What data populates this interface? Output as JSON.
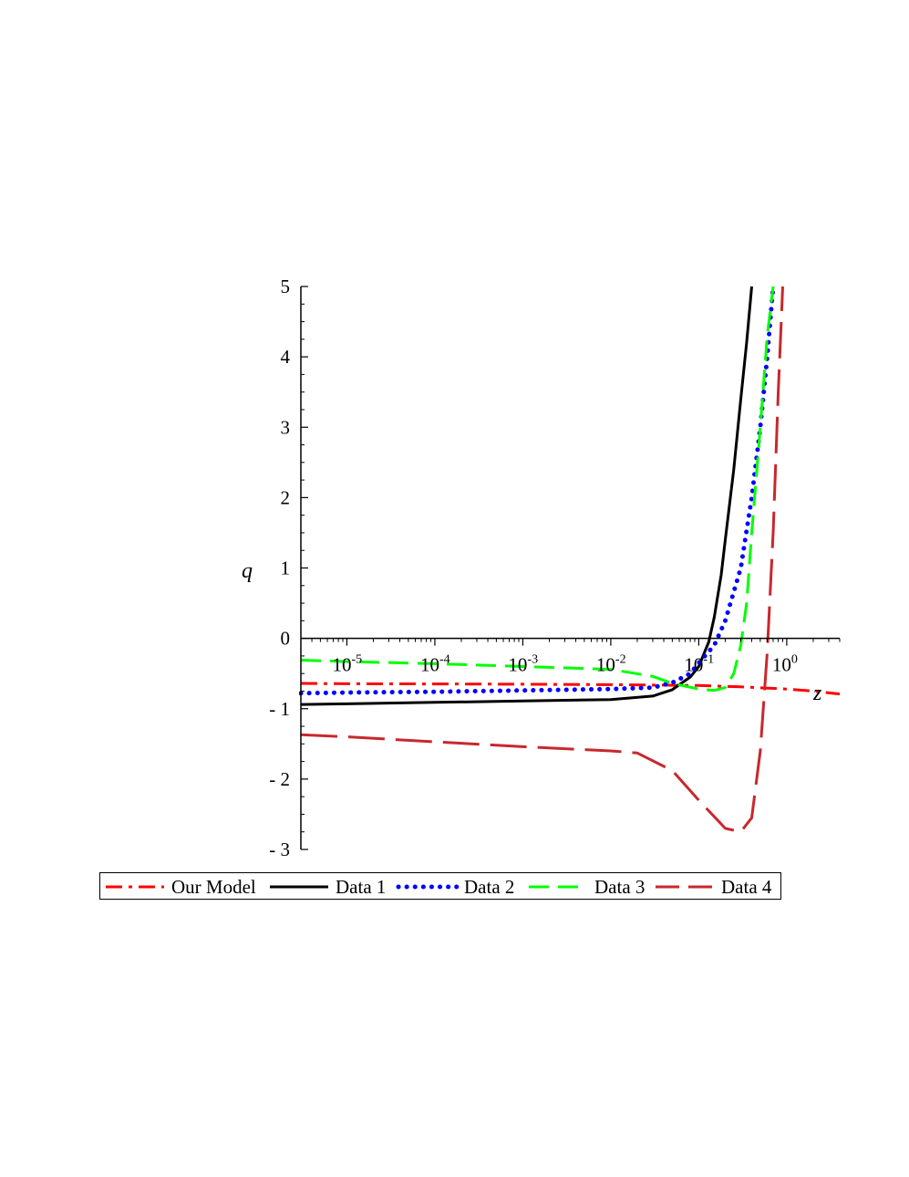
{
  "chart_data": {
    "type": "line",
    "xlabel": "z",
    "ylabel": "q",
    "x_scale": "log",
    "xlim": [
      3e-06,
      4
    ],
    "ylim": [
      -3,
      5
    ],
    "x_ticks": [
      {
        "base": "10",
        "exp": "-5",
        "value": 1e-05
      },
      {
        "base": "10",
        "exp": "-4",
        "value": 0.0001
      },
      {
        "base": "10",
        "exp": "-3",
        "value": 0.001
      },
      {
        "base": "10",
        "exp": "-2",
        "value": 0.01
      },
      {
        "base": "10",
        "exp": "-1",
        "value": 0.1
      },
      {
        "base": "10",
        "exp": "0",
        "value": 1
      }
    ],
    "y_ticks": [
      {
        "label": "- 3",
        "value": -3
      },
      {
        "label": "- 2",
        "value": -2
      },
      {
        "label": "- 1",
        "value": -1
      },
      {
        "label": "0",
        "value": 0
      },
      {
        "label": "1",
        "value": 1
      },
      {
        "label": "2",
        "value": 2
      },
      {
        "label": "3",
        "value": 3
      },
      {
        "label": "4",
        "value": 4
      },
      {
        "label": "5",
        "value": 5
      }
    ],
    "grid": false,
    "legend_position": "bottom",
    "series": [
      {
        "name": "Our Model",
        "color": "#ff0000",
        "dash": "dashdot",
        "points": [
          [
            3e-06,
            -0.64
          ],
          [
            1e-05,
            -0.645
          ],
          [
            0.0001,
            -0.648
          ],
          [
            0.001,
            -0.652
          ],
          [
            0.01,
            -0.658
          ],
          [
            0.1,
            -0.67
          ],
          [
            0.3,
            -0.69
          ],
          [
            1,
            -0.72
          ],
          [
            2,
            -0.75
          ],
          [
            4,
            -0.79
          ]
        ]
      },
      {
        "name": "Data 1",
        "color": "#000000",
        "dash": "solid",
        "points": [
          [
            3e-06,
            -0.94
          ],
          [
            1e-05,
            -0.93
          ],
          [
            0.0001,
            -0.91
          ],
          [
            0.001,
            -0.89
          ],
          [
            0.01,
            -0.87
          ],
          [
            0.03,
            -0.82
          ],
          [
            0.05,
            -0.73
          ],
          [
            0.08,
            -0.55
          ],
          [
            0.1,
            -0.4
          ],
          [
            0.13,
            -0.05
          ],
          [
            0.15,
            0.3
          ],
          [
            0.18,
            0.9
          ],
          [
            0.2,
            1.4
          ],
          [
            0.25,
            2.4
          ],
          [
            0.3,
            3.4
          ],
          [
            0.35,
            4.2
          ],
          [
            0.4,
            5.0
          ]
        ]
      },
      {
        "name": "Data 2",
        "color": "#0000ff",
        "dash": "dotted",
        "points": [
          [
            3e-06,
            -0.78
          ],
          [
            1e-05,
            -0.77
          ],
          [
            0.0001,
            -0.76
          ],
          [
            0.001,
            -0.74
          ],
          [
            0.01,
            -0.72
          ],
          [
            0.03,
            -0.7
          ],
          [
            0.05,
            -0.63
          ],
          [
            0.08,
            -0.5
          ],
          [
            0.1,
            -0.35
          ],
          [
            0.15,
            -0.1
          ],
          [
            0.2,
            0.25
          ],
          [
            0.3,
            1.0
          ],
          [
            0.4,
            2.0
          ],
          [
            0.5,
            3.0
          ],
          [
            0.6,
            4.0
          ],
          [
            0.7,
            5.0
          ]
        ]
      },
      {
        "name": "Data 3",
        "color": "#00ff00",
        "dash": "dashed",
        "points": [
          [
            3e-06,
            -0.31
          ],
          [
            1e-05,
            -0.33
          ],
          [
            0.0001,
            -0.36
          ],
          [
            0.001,
            -0.4
          ],
          [
            0.01,
            -0.44
          ],
          [
            0.03,
            -0.54
          ],
          [
            0.05,
            -0.64
          ],
          [
            0.1,
            -0.72
          ],
          [
            0.15,
            -0.74
          ],
          [
            0.2,
            -0.7
          ],
          [
            0.25,
            -0.5
          ],
          [
            0.3,
            -0.1
          ],
          [
            0.35,
            0.5
          ],
          [
            0.4,
            1.5
          ],
          [
            0.5,
            3.0
          ],
          [
            0.6,
            4.3
          ],
          [
            0.7,
            5.0
          ]
        ]
      },
      {
        "name": "Data 4",
        "color": "#c8282d",
        "dash": "longdash",
        "points": [
          [
            3e-06,
            -1.37
          ],
          [
            1e-05,
            -1.4
          ],
          [
            0.0001,
            -1.47
          ],
          [
            0.001,
            -1.54
          ],
          [
            0.01,
            -1.6
          ],
          [
            0.02,
            -1.63
          ],
          [
            0.05,
            -1.88
          ],
          [
            0.1,
            -2.3
          ],
          [
            0.2,
            -2.7
          ],
          [
            0.3,
            -2.75
          ],
          [
            0.4,
            -2.55
          ],
          [
            0.5,
            -1.6
          ],
          [
            0.6,
            -0.2
          ],
          [
            0.7,
            1.5
          ],
          [
            0.8,
            3.5
          ],
          [
            0.9,
            5.0
          ]
        ]
      }
    ]
  }
}
